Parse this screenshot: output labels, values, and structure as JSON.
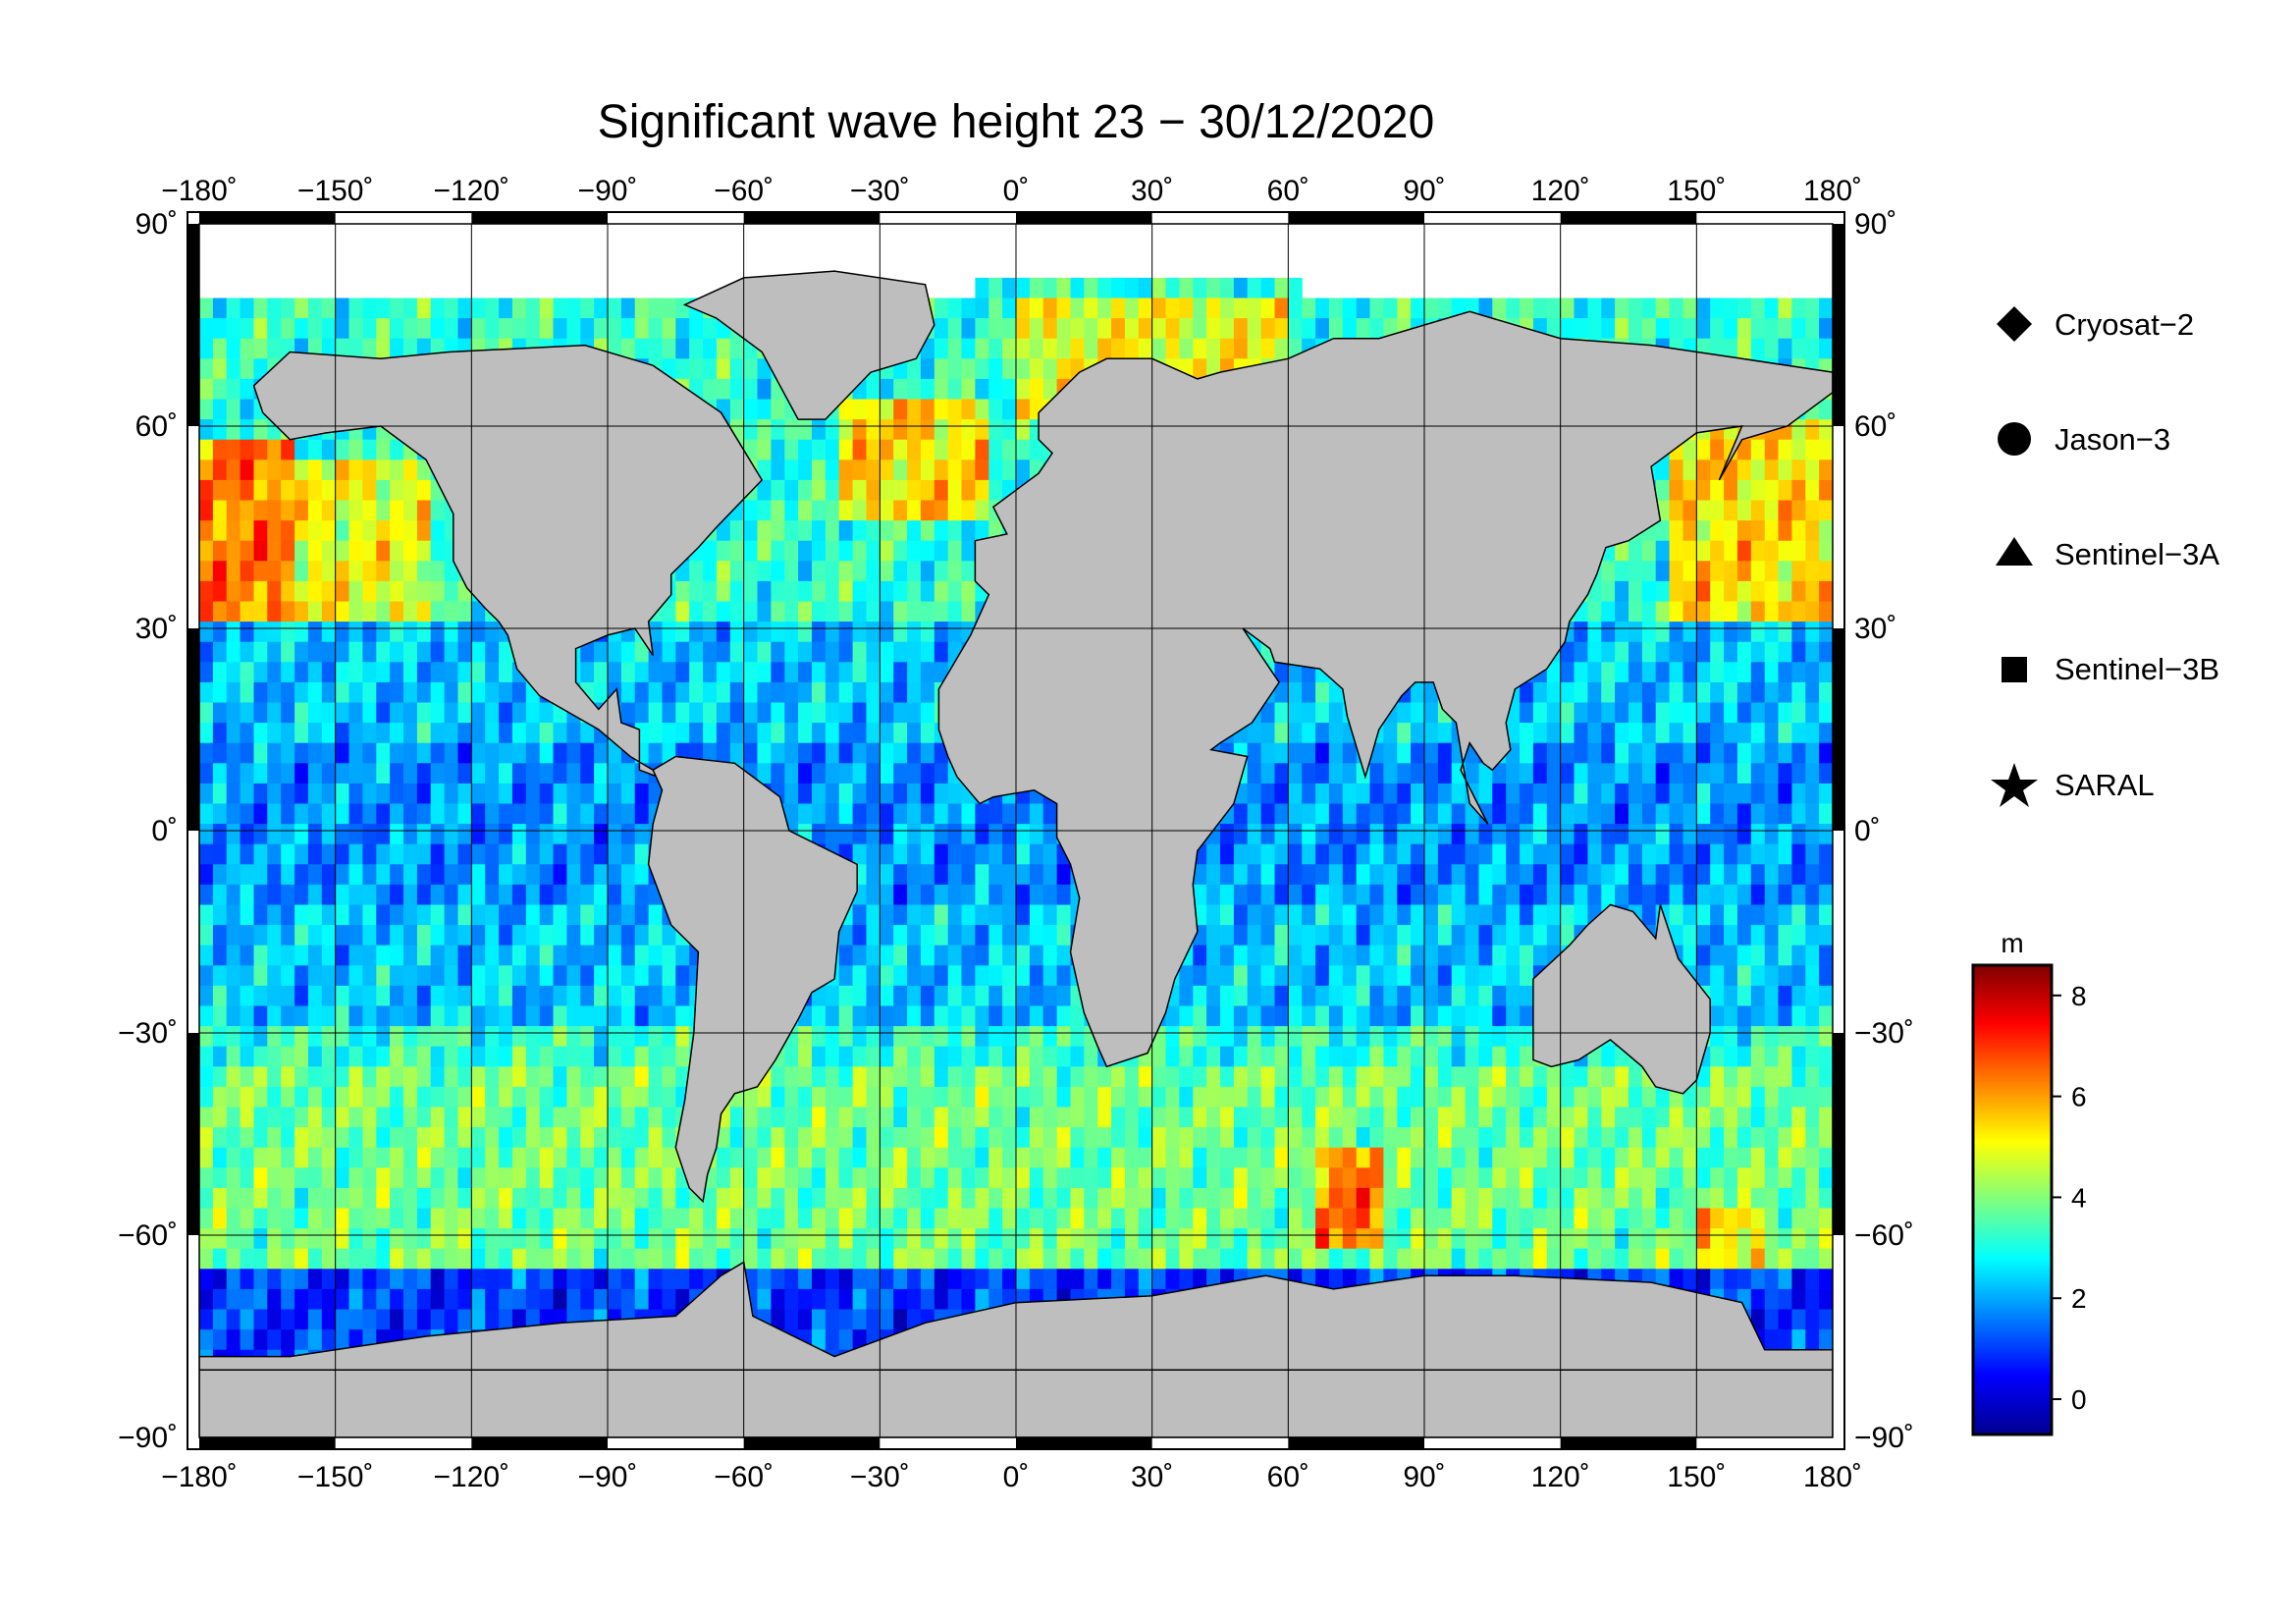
{
  "title": "Significant wave height 23 − 30/12/2020",
  "map": {
    "projection": "equirectangular",
    "lon_range": [
      -180,
      180
    ],
    "lat_range": [
      -90,
      90
    ],
    "grid": true,
    "lon_ticks": [
      "−180˚",
      "−150˚",
      "−120˚",
      "−90˚",
      "−60˚",
      "−30˚",
      "0˚",
      "30˚",
      "60˚",
      "90˚",
      "120˚",
      "150˚",
      "180˚"
    ],
    "lat_ticks": [
      "90˚",
      "60˚",
      "30˚",
      "0˚",
      "−30˚",
      "−60˚",
      "−90˚"
    ],
    "lon_values": [
      -180,
      -150,
      -120,
      -90,
      -60,
      -30,
      0,
      30,
      60,
      90,
      120,
      150,
      180
    ],
    "lat_values": [
      90,
      60,
      30,
      0,
      -30,
      -60,
      -90
    ],
    "land_color": "#bebebe",
    "ice_color": "#ffffff"
  },
  "legend": {
    "items": [
      {
        "label": "Cryosat−2",
        "marker": "diamond"
      },
      {
        "label": "Jason−3",
        "marker": "circle"
      },
      {
        "label": "Sentinel−3A",
        "marker": "triangle"
      },
      {
        "label": "Sentinel−3B",
        "marker": "square"
      },
      {
        "label": "SARAL",
        "marker": "star"
      }
    ]
  },
  "colorbar": {
    "unit": "m",
    "range": [
      -0.7,
      8.6
    ],
    "ticks": [
      "8",
      "6",
      "4",
      "2",
      "0"
    ],
    "tick_values": [
      8,
      6,
      4,
      2,
      0
    ],
    "colormap": "jet"
  },
  "chart_data": {
    "type": "heatmap",
    "title": "Significant wave height 23 − 30/12/2020",
    "variable": "significant wave height",
    "unit": "m",
    "x": "longitude",
    "y": "latitude",
    "xlim": [
      -180,
      180
    ],
    "ylim": [
      -90,
      90
    ],
    "value_range": [
      0,
      8.5
    ],
    "regional_swh_m": [
      {
        "lon": [
          -180,
          -160
        ],
        "lat": [
          30,
          58
        ],
        "swh": 7.0
      },
      {
        "lon": [
          -160,
          -130
        ],
        "lat": [
          30,
          55
        ],
        "swh": 5.5
      },
      {
        "lon": [
          -40,
          -5
        ],
        "lat": [
          45,
          65
        ],
        "swh": 6.0
      },
      {
        "lon": [
          0,
          60
        ],
        "lat": [
          62,
          78
        ],
        "swh": 5.5
      },
      {
        "lon": [
          145,
          180
        ],
        "lat": [
          30,
          60
        ],
        "swh": 6.0
      },
      {
        "lon": [
          -180,
          180
        ],
        "lat": [
          -15,
          15
        ],
        "swh": 2.0
      },
      {
        "lon": [
          -180,
          -80
        ],
        "lat": [
          -30,
          -15
        ],
        "swh": 1.5
      },
      {
        "lon": [
          -180,
          180
        ],
        "lat": [
          -65,
          -35
        ],
        "swh": 4.0
      },
      {
        "lon": [
          65,
          80
        ],
        "lat": [
          -62,
          -48
        ],
        "swh": 7.0
      },
      {
        "lon": [
          150,
          165
        ],
        "lat": [
          -65,
          -55
        ],
        "swh": 6.0
      },
      {
        "lon": [
          -180,
          180
        ],
        "lat": [
          -75,
          -65
        ],
        "swh": 1.0
      }
    ]
  }
}
